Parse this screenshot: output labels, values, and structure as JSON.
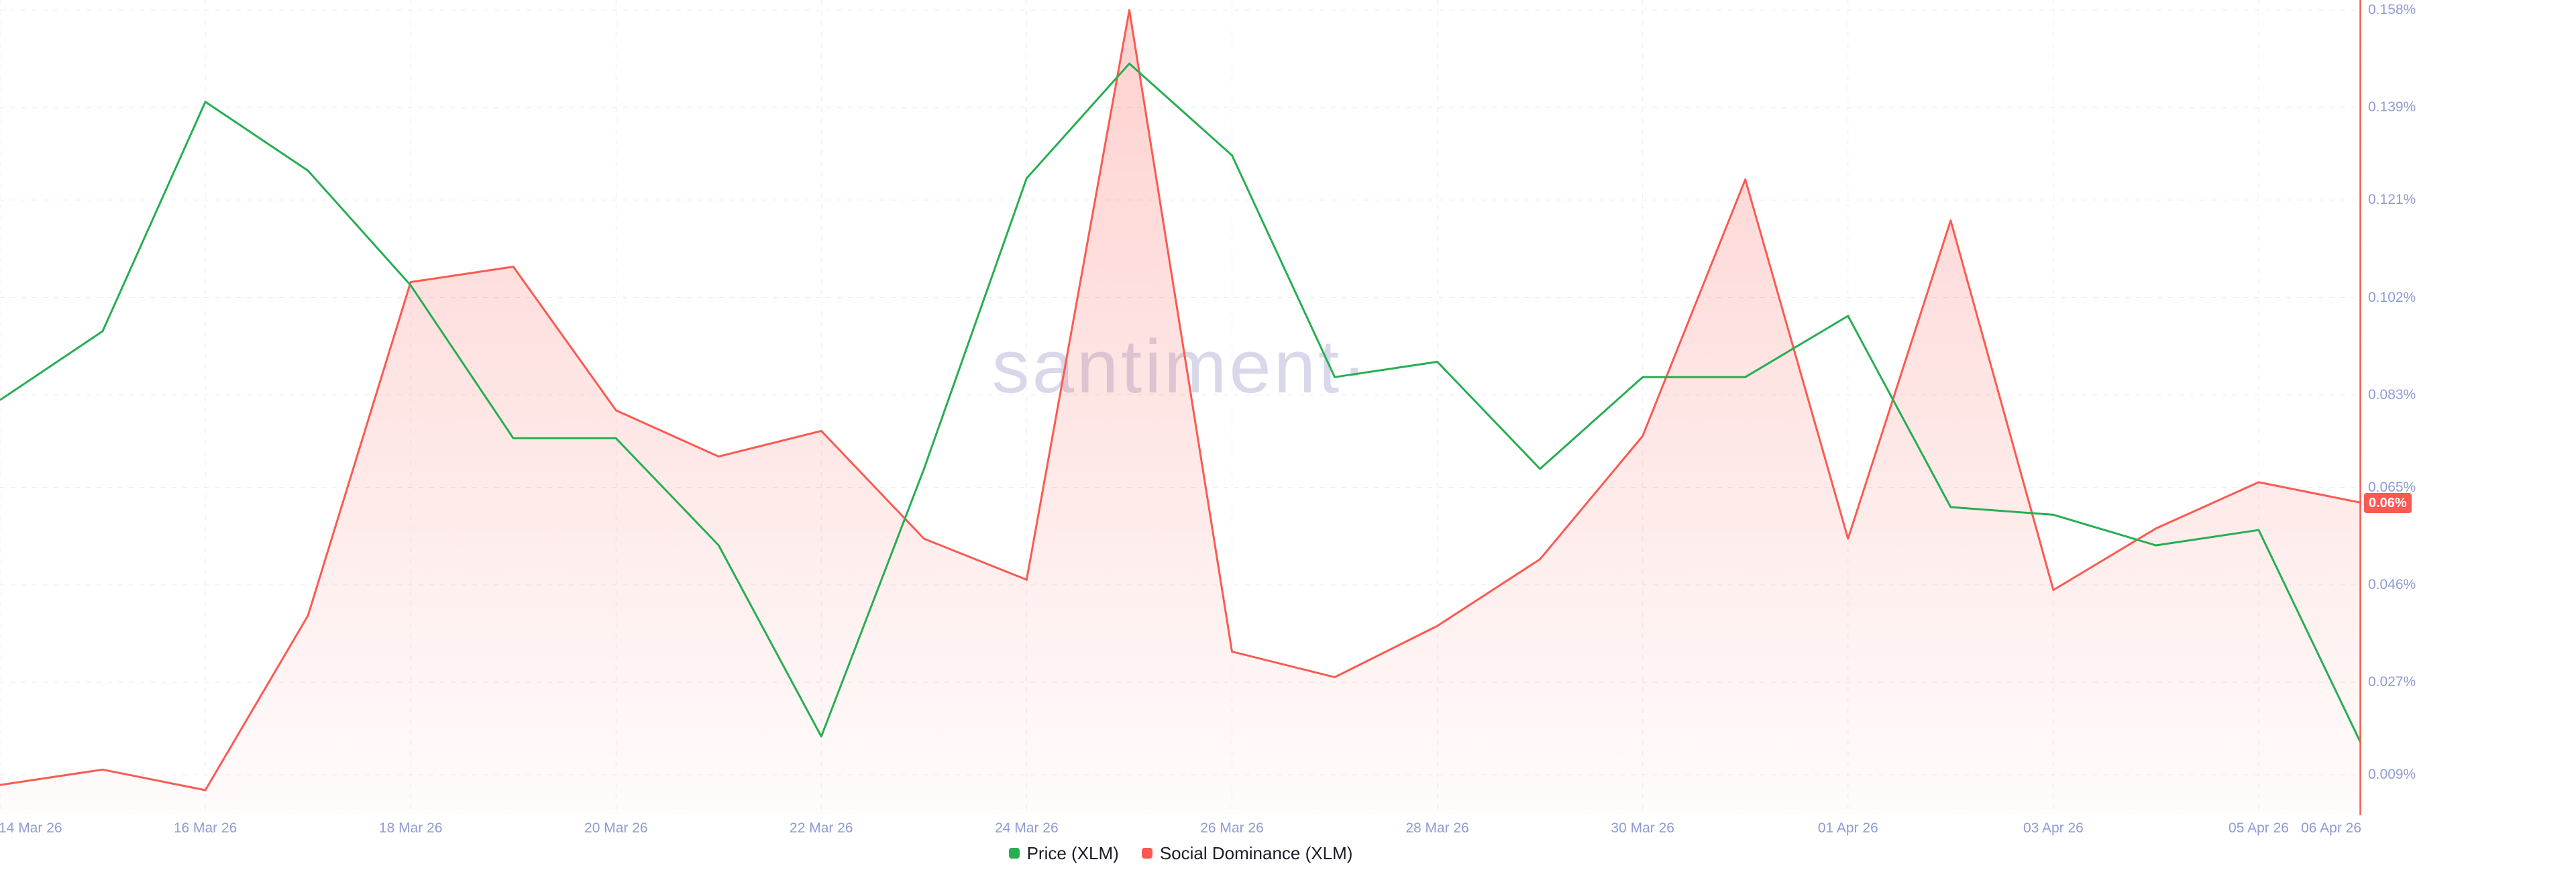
{
  "watermark": {
    "text": "santiment·"
  },
  "colors": {
    "price_green": "#27ae52",
    "social_red": "#fa5a52",
    "axis_label": "#8f9bd6",
    "gridline": "#ebedf6",
    "legend_text": "#1c1c28",
    "background": "#ffffff"
  },
  "current_value_badge": {
    "text": "0.06%",
    "value": 0.062,
    "color": "#fa5a52"
  },
  "axes": {
    "y_right": {
      "labels": [
        "0.158%",
        "0.139%",
        "0.121%",
        "0.102%",
        "0.083%",
        "0.065%",
        "0.046%",
        "0.027%",
        "0.009%"
      ],
      "min": 0.009,
      "max": 0.158,
      "unit": "%"
    },
    "x": {
      "tick_labels": [
        "14 Mar 26",
        "16 Mar 26",
        "18 Mar 26",
        "20 Mar 26",
        "22 Mar 26",
        "24 Mar 26",
        "26 Mar 26",
        "28 Mar 26",
        "30 Mar 26",
        "01 Apr 26",
        "03 Apr 26",
        "05 Apr 26",
        "06 Apr 26"
      ],
      "tick_indices": [
        0,
        2,
        4,
        6,
        8,
        10,
        12,
        14,
        16,
        18,
        20,
        22,
        23
      ]
    }
  },
  "legend": [
    {
      "label": "Price (XLM)",
      "color": "#27ae52"
    },
    {
      "label": "Social Dominance (XLM)",
      "color": "#fa5a52"
    }
  ],
  "chart_data": {
    "type": "line",
    "x": [
      "14 Mar 26",
      "15 Mar 26",
      "16 Mar 26",
      "17 Mar 26",
      "18 Mar 26",
      "19 Mar 26",
      "20 Mar 26",
      "21 Mar 26",
      "22 Mar 26",
      "23 Mar 26",
      "24 Mar 26",
      "25 Mar 26",
      "26 Mar 26",
      "27 Mar 26",
      "28 Mar 26",
      "29 Mar 26",
      "30 Mar 26",
      "31 Mar 26",
      "01 Apr 26",
      "02 Apr 26",
      "03 Apr 26",
      "04 Apr 26",
      "05 Apr 26",
      "06 Apr 26"
    ],
    "series": [
      {
        "name": "Price (XLM)",
        "color": "#27ae52",
        "style": "line",
        "y_axis": "hidden",
        "values_normalized": [
          0.49,
          0.58,
          0.88,
          0.79,
          0.64,
          0.44,
          0.44,
          0.3,
          0.05,
          0.4,
          0.78,
          0.93,
          0.81,
          0.52,
          0.54,
          0.4,
          0.52,
          0.52,
          0.6,
          0.35,
          0.34,
          0.3,
          0.32,
          0.04
        ]
      },
      {
        "name": "Social Dominance (XLM)",
        "color": "#fa5a52",
        "style": "area-line",
        "y_axis": "right",
        "unit": "%",
        "values": [
          0.007,
          0.01,
          0.006,
          0.04,
          0.105,
          0.108,
          0.08,
          0.071,
          0.076,
          0.055,
          0.047,
          0.158,
          0.033,
          0.028,
          0.038,
          0.051,
          0.075,
          0.125,
          0.055,
          0.117,
          0.045,
          0.057,
          0.066,
          0.062
        ]
      }
    ],
    "ylim_right": [
      0.009,
      0.158
    ],
    "grid": "dashed",
    "legend_position": "bottom-center"
  }
}
